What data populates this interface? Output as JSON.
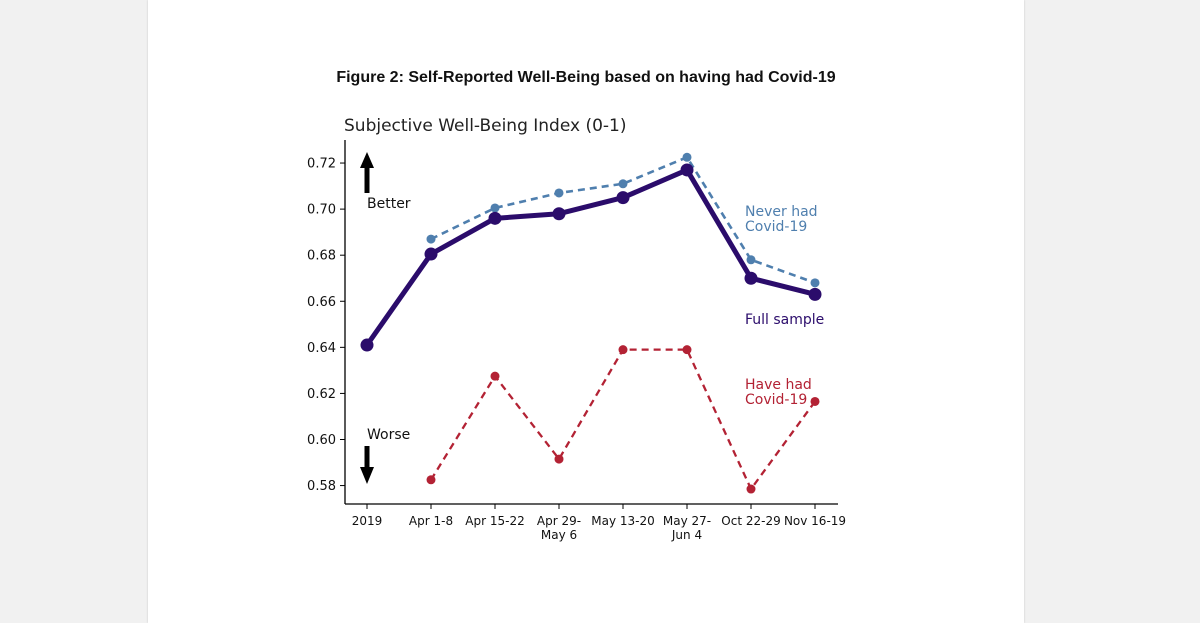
{
  "figure_title": "Figure 2: Self-Reported Well-Being based on having had Covid-19",
  "chart_data": {
    "type": "line",
    "title": "Subjective Well-Being Index (0-1)",
    "xlabel": "",
    "ylabel": "",
    "categories": [
      "2019",
      "Apr 1-8",
      "Apr 15-22",
      "Apr 29-\nMay 6",
      "May 13-20",
      "May 27-\nJun 4",
      "Oct 22-29",
      "Nov 16-19"
    ],
    "ylim": [
      0.572,
      0.73
    ],
    "yticks": [
      "0.58",
      "0.60",
      "0.62",
      "0.64",
      "0.66",
      "0.68",
      "0.70",
      "0.72"
    ],
    "grid": false,
    "series": [
      {
        "name": "Never had Covid-19",
        "color": "#4f7fae",
        "style": "dashed",
        "values": [
          null,
          0.687,
          0.7005,
          0.707,
          0.711,
          0.7225,
          0.678,
          0.668
        ]
      },
      {
        "name": "Full sample",
        "color": "#2b0c6b",
        "style": "solid",
        "values": [
          0.641,
          0.6805,
          0.696,
          0.698,
          0.705,
          0.717,
          0.67,
          0.663
        ]
      },
      {
        "name": "Have had Covid-19",
        "color": "#b32234",
        "style": "dashed",
        "values": [
          null,
          0.5825,
          0.6275,
          0.5915,
          0.639,
          0.639,
          0.5785,
          0.6165
        ]
      }
    ],
    "annotations": {
      "better": "Better",
      "worse": "Worse",
      "never_label": "Never had\nCovid-19",
      "full_label": "Full sample",
      "have_label": "Have had\nCovid-19"
    }
  }
}
